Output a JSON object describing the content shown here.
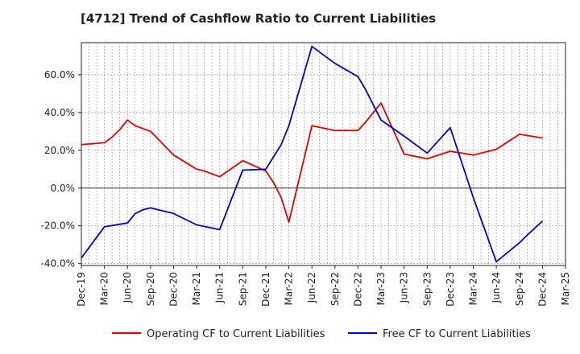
{
  "chart_data": {
    "type": "line",
    "title": "[4712]  Trend of Cashflow Ratio to Current Liabilities",
    "xlabel": "",
    "ylabel": "",
    "x_ticks": [
      "Dec-19",
      "Mar-20",
      "Jun-20",
      "Sep-20",
      "Dec-20",
      "Mar-21",
      "Jun-21",
      "Sep-21",
      "Dec-21",
      "Mar-22",
      "Jun-22",
      "Sep-22",
      "Dec-22",
      "Mar-23",
      "Jun-23",
      "Sep-23",
      "Dec-23",
      "Mar-24",
      "Jun-24",
      "Sep-24",
      "Dec-24",
      "Mar-25"
    ],
    "y_ticks": [
      "-40.0%",
      "-20.0%",
      "0.0%",
      "20.0%",
      "40.0%",
      "60.0%"
    ],
    "y_tick_values": [
      -40,
      -20,
      0,
      20,
      40,
      60
    ],
    "ylim": [
      -41,
      77
    ],
    "x_range_months": [
      "2019-12",
      "2025-03"
    ],
    "grid": true,
    "legend_position": "bottom",
    "series": [
      {
        "name": "Operating CF to Current Liabilities",
        "color": "#dd0000",
        "x": [
          "2019-12",
          "2020-03",
          "2020-04",
          "2020-05",
          "2020-06",
          "2020-07",
          "2020-09",
          "2020-12",
          "2021-03",
          "2021-04",
          "2021-06",
          "2021-09",
          "2021-12",
          "2022-01",
          "2022-02",
          "2022-03",
          "2022-06",
          "2022-09",
          "2022-12",
          "2023-01",
          "2023-02",
          "2023-03",
          "2023-06",
          "2023-09",
          "2023-12",
          "2024-03",
          "2024-06",
          "2024-09",
          "2024-12"
        ],
        "values": [
          23,
          24,
          27,
          31,
          36,
          33,
          30,
          17.5,
          10,
          9,
          6,
          14.5,
          9,
          3,
          -5,
          -18,
          33,
          30.5,
          30.5,
          35,
          40,
          45,
          18,
          15.5,
          19.5,
          17.5,
          20.5,
          28.5,
          26.5
        ]
      },
      {
        "name": "Free CF to Current Liabilities",
        "color": "#0000cc",
        "x": [
          "2019-12",
          "2020-03",
          "2020-06",
          "2020-07",
          "2020-08",
          "2020-09",
          "2020-12",
          "2021-03",
          "2021-06",
          "2021-09",
          "2021-12",
          "2022-01",
          "2022-02",
          "2022-03",
          "2022-06",
          "2022-09",
          "2022-12",
          "2023-01",
          "2023-02",
          "2023-03",
          "2023-06",
          "2023-09",
          "2023-10",
          "2023-12",
          "2024-03",
          "2024-06",
          "2024-09",
          "2024-10",
          "2024-12"
        ],
        "values": [
          -37,
          -20.5,
          -18.5,
          -13.5,
          -11.5,
          -10.5,
          -13.5,
          -19.5,
          -22,
          9.5,
          10,
          16.5,
          23,
          33,
          75,
          66,
          59,
          52,
          44,
          36,
          27.5,
          18.5,
          23,
          32,
          -5,
          -39,
          -29,
          -25,
          -17.5
        ]
      }
    ]
  }
}
